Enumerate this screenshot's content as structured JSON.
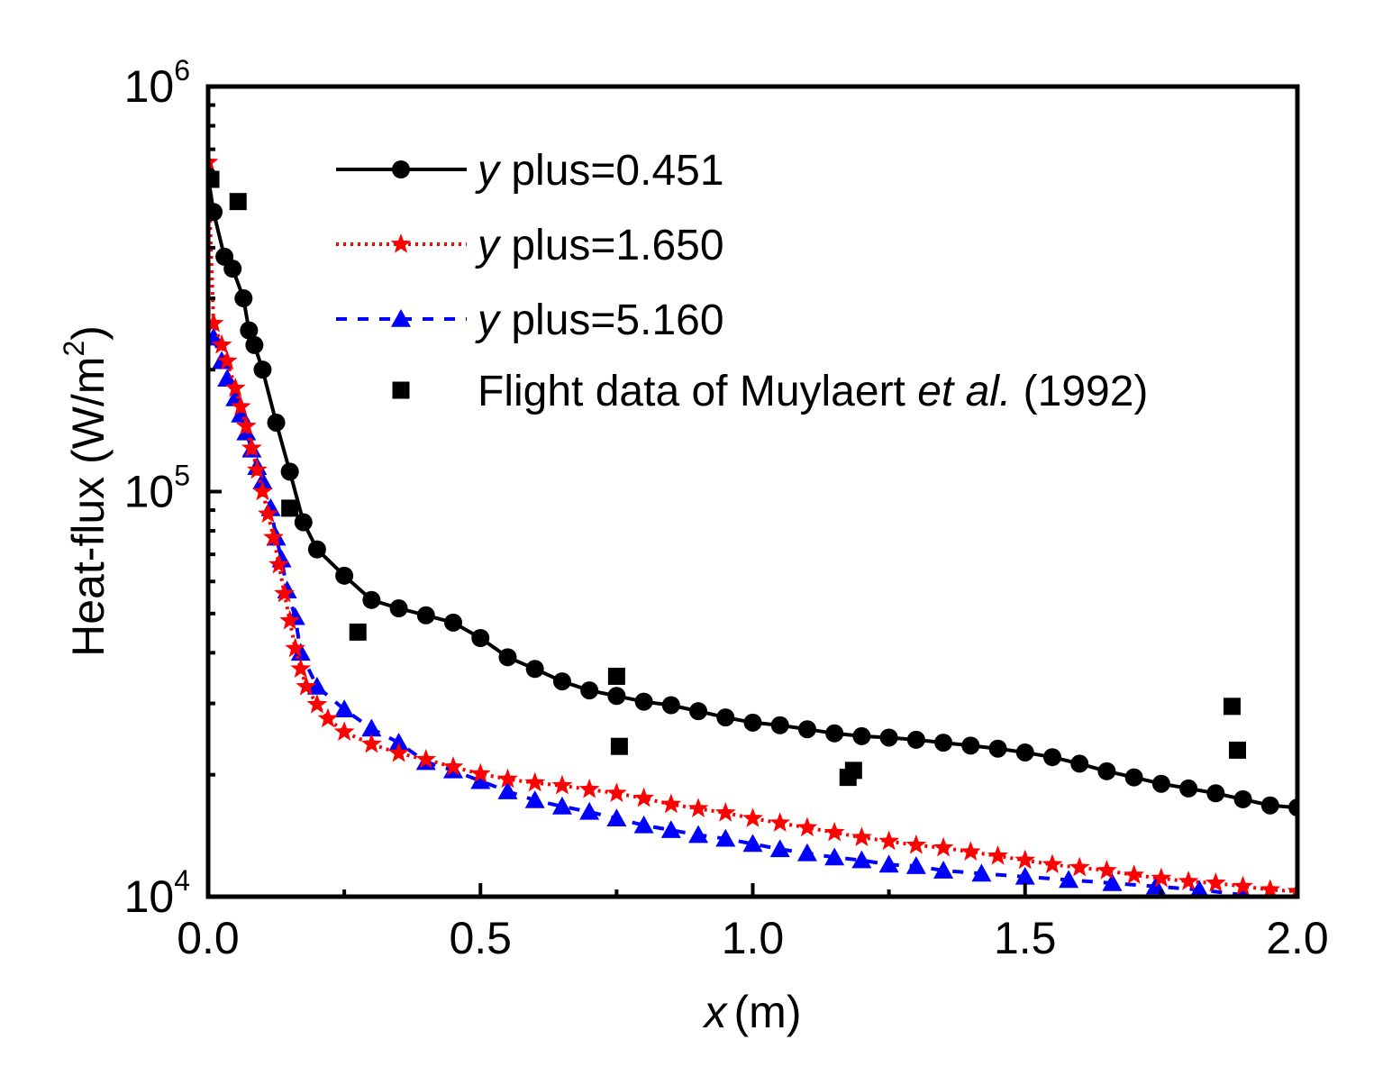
{
  "chart_data": {
    "type": "line",
    "title": "",
    "xlabel": {
      "var": "x",
      "unit": "(m)"
    },
    "ylabel": {
      "text": "Heat-flux (W/m",
      "sup": "2",
      "close": ")"
    },
    "xlim": [
      0,
      2.0
    ],
    "ylim": [
      10000,
      1000000
    ],
    "yscale": "log",
    "grid": false,
    "legend_position": "top-right",
    "x_ticks": [
      "0.0",
      "0.5",
      "1.0",
      "1.5",
      "2.0"
    ],
    "y_ticks": [
      {
        "value": 10000,
        "base": "10",
        "exp": "4"
      },
      {
        "value": 100000,
        "base": "10",
        "exp": "5"
      },
      {
        "value": 1000000,
        "base": "10",
        "exp": "6"
      }
    ],
    "series": [
      {
        "name": "y plus=0.451",
        "label_var": "y",
        "label_rest": " plus=0.451",
        "color": "#000000",
        "line_style": "solid",
        "marker": "circle",
        "x": [
          0.0,
          0.01,
          0.03,
          0.045,
          0.065,
          0.075,
          0.085,
          0.1,
          0.125,
          0.15,
          0.175,
          0.2,
          0.25,
          0.3,
          0.35,
          0.4,
          0.45,
          0.5,
          0.55,
          0.6,
          0.65,
          0.7,
          0.75,
          0.8,
          0.85,
          0.9,
          0.95,
          1.0,
          1.05,
          1.1,
          1.15,
          1.2,
          1.25,
          1.3,
          1.35,
          1.4,
          1.45,
          1.5,
          1.55,
          1.6,
          1.65,
          1.7,
          1.75,
          1.8,
          1.85,
          1.9,
          1.95,
          2.0
        ],
        "y": [
          600000,
          490000,
          380000,
          355000,
          300000,
          250000,
          230000,
          200000,
          148000,
          112000,
          84000,
          72000,
          62000,
          54000,
          51500,
          49500,
          47500,
          43500,
          39000,
          36500,
          34000,
          32300,
          31300,
          30300,
          29700,
          28700,
          27700,
          26900,
          26500,
          25900,
          25300,
          24900,
          24700,
          24400,
          24000,
          23600,
          23200,
          22700,
          22100,
          21300,
          20400,
          19700,
          19000,
          18500,
          18000,
          17400,
          16800,
          16600
        ]
      },
      {
        "name": "y plus=1.650",
        "label_var": "y",
        "label_rest": " plus=1.650",
        "color": "#ff0000",
        "line_style": "dotted",
        "marker": "star",
        "x": [
          0.0,
          0.01,
          0.025,
          0.035,
          0.05,
          0.06,
          0.07,
          0.08,
          0.09,
          0.1,
          0.11,
          0.12,
          0.13,
          0.14,
          0.15,
          0.16,
          0.17,
          0.18,
          0.2,
          0.22,
          0.25,
          0.3,
          0.35,
          0.4,
          0.45,
          0.5,
          0.55,
          0.6,
          0.65,
          0.7,
          0.75,
          0.8,
          0.85,
          0.9,
          0.95,
          1.0,
          1.05,
          1.1,
          1.15,
          1.2,
          1.25,
          1.3,
          1.35,
          1.4,
          1.45,
          1.5,
          1.55,
          1.6,
          1.65,
          1.7,
          1.75,
          1.8,
          1.85,
          1.9,
          1.95,
          2.0
        ],
        "y": [
          650000,
          260000,
          230000,
          210000,
          180000,
          162000,
          145000,
          128000,
          113000,
          100000,
          88000,
          77000,
          66000,
          56000,
          48000,
          41000,
          36500,
          33000,
          29800,
          27500,
          25500,
          23800,
          22600,
          21800,
          20900,
          20100,
          19500,
          19100,
          18800,
          18400,
          18000,
          17500,
          16900,
          16500,
          16100,
          15600,
          15200,
          14800,
          14400,
          14000,
          13700,
          13400,
          13200,
          12900,
          12600,
          12300,
          12000,
          11800,
          11600,
          11300,
          11100,
          10900,
          10800,
          10600,
          10400,
          10300
        ]
      },
      {
        "name": "y plus=5.160",
        "label_var": "y",
        "label_rest": " plus=5.160",
        "color": "#0000ff",
        "line_style": "dashed",
        "marker": "triangle",
        "x": [
          0.01,
          0.025,
          0.035,
          0.05,
          0.06,
          0.07,
          0.08,
          0.09,
          0.1,
          0.115,
          0.125,
          0.135,
          0.145,
          0.16,
          0.17,
          0.2,
          0.25,
          0.3,
          0.35,
          0.4,
          0.45,
          0.5,
          0.55,
          0.6,
          0.65,
          0.7,
          0.75,
          0.8,
          0.85,
          0.9,
          0.95,
          1.0,
          1.05,
          1.1,
          1.15,
          1.2,
          1.25,
          1.3,
          1.35,
          1.42,
          1.5,
          1.58,
          1.66,
          1.74,
          1.82,
          1.9
        ],
        "y": [
          240000,
          210000,
          190000,
          170000,
          155000,
          140000,
          127000,
          115000,
          106000,
          91000,
          77000,
          68000,
          57000,
          49000,
          40000,
          33000,
          29000,
          26000,
          24000,
          21500,
          20500,
          19300,
          18200,
          17300,
          16700,
          16200,
          15600,
          15000,
          14600,
          14200,
          13900,
          13500,
          13100,
          12800,
          12500,
          12300,
          12000,
          11900,
          11600,
          11400,
          11200,
          11000,
          10800,
          10600,
          10400,
          10100
        ]
      },
      {
        "name": "Flight data of Muylaert et al. (1992)",
        "label_pre": "Flight data of Muylaert ",
        "label_italic": "et al.",
        "label_post": " (1992)",
        "color": "#000000",
        "line_style": "none",
        "marker": "square",
        "x": [
          0.005,
          0.055,
          0.15,
          0.275,
          0.75,
          0.755,
          1.175,
          1.185,
          1.88,
          1.89
        ],
        "y": [
          590000,
          520000,
          91000,
          45000,
          35000,
          23500,
          19700,
          20500,
          29500,
          23000
        ]
      }
    ]
  }
}
